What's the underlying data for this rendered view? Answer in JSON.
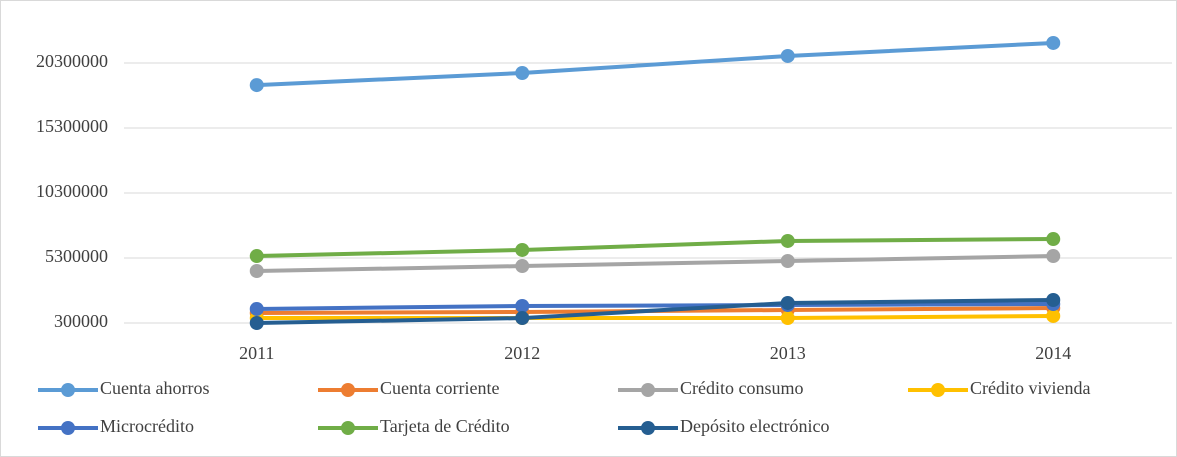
{
  "chart_data": {
    "type": "line",
    "categories": [
      "2011",
      "2012",
      "2013",
      "2014"
    ],
    "series": [
      {
        "name": "Cuenta ahorros",
        "color": "#5b9bd5",
        "values": [
          18600000,
          19530000,
          20840000,
          21840000
        ]
      },
      {
        "name": "Cuenta corriente",
        "color": "#ed7d31",
        "values": [
          1070000,
          1150000,
          1300000,
          1450000
        ]
      },
      {
        "name": "Crédito consumo",
        "color": "#a5a5a5",
        "values": [
          4300000,
          4680000,
          5070000,
          5450000
        ]
      },
      {
        "name": "Crédito vivienda",
        "color": "#ffc000",
        "values": [
          680000,
          680000,
          680000,
          840000
        ]
      },
      {
        "name": "Microcrédito",
        "color": "#4472c4",
        "values": [
          1380000,
          1610000,
          1680000,
          1760000
        ]
      },
      {
        "name": "Tarjeta de Crédito",
        "color": "#70ad47",
        "values": [
          5450000,
          5920000,
          6610000,
          6760000
        ]
      },
      {
        "name": "Depósito electrónico",
        "color": "#255e91",
        "values": [
          300000,
          680000,
          1840000,
          2070000
        ]
      }
    ],
    "ylim": [
      300000,
      24300000
    ],
    "yticks": [
      300000,
      5300000,
      10300000,
      15300000,
      20300000
    ],
    "grid": true,
    "legend": "bottom"
  }
}
